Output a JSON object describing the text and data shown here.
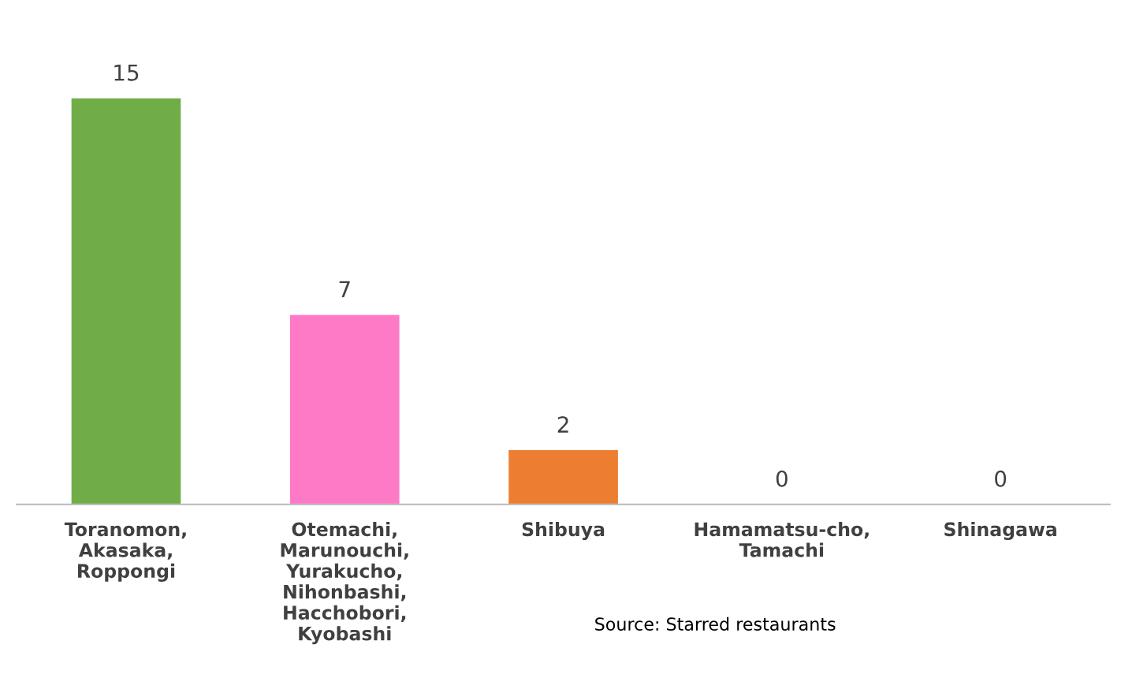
{
  "chart_data": {
    "type": "bar",
    "categories": [
      "Toranomon,\nAkasaka,\nRoppongi",
      "Otemachi,\nMarunouchi,\nYurakucho,\nNihonbashi,\nHacchobori,\nKyobashi",
      "Shibuya",
      "Hamamatsu-cho,\nTamachi",
      "Shinagawa"
    ],
    "values": [
      15,
      7,
      2,
      0,
      0
    ],
    "colors": [
      "#70ad47",
      "#ff7ac6",
      "#ed7d31",
      "#a5a5a5",
      "#a5a5a5"
    ],
    "data_labels": true,
    "grid": false,
    "annotations": [
      {
        "text": "Source: Starred restaurants"
      }
    ]
  }
}
